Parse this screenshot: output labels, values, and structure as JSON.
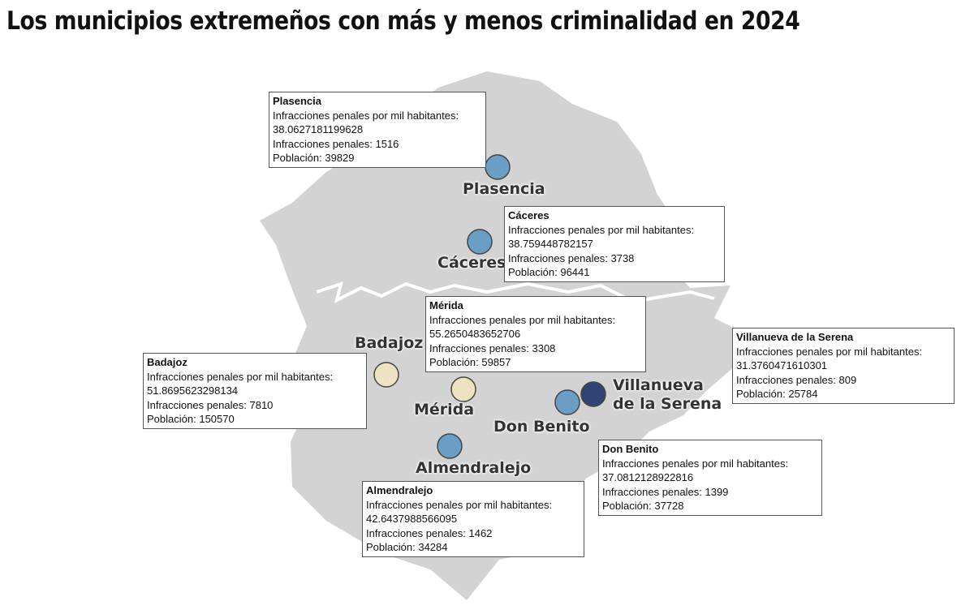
{
  "title": "Los municipios extremeños con más y menos criminalidad en 2024",
  "field_labels": [
    "Infracciones penales por mil habitantes:",
    "Infracciones penales:",
    "Población:"
  ],
  "cities": [
    {
      "name": "Plasencia",
      "color": "#6b9ec4",
      "rate": 38.0627181199628,
      "count": 1516,
      "population": 39829
    },
    {
      "name": "Cáceres",
      "color": "#6b9ec4",
      "rate": 38.759448782157,
      "count": 3738,
      "population": 96441
    },
    {
      "name": "Mérida",
      "color": "#ede3c3",
      "rate": 55.2650483652706,
      "count": 3308,
      "population": 59857
    },
    {
      "name": "Badajoz",
      "color": "#ede3c3",
      "rate": 51.8695623298134,
      "count": 7810,
      "population": 150570
    },
    {
      "name": "Villanueva de la Serena",
      "color": "#2f4473",
      "rate": 31.3760471610301,
      "count": 809,
      "population": 25784
    },
    {
      "name": "Don Benito",
      "color": "#6b9ec4",
      "rate": 37.0812128922816,
      "count": 1399,
      "population": 37728
    },
    {
      "name": "Almendralejo",
      "color": "#6b9ec4",
      "rate": 42.6437988566095,
      "count": 1462,
      "population": 34284
    }
  ]
}
